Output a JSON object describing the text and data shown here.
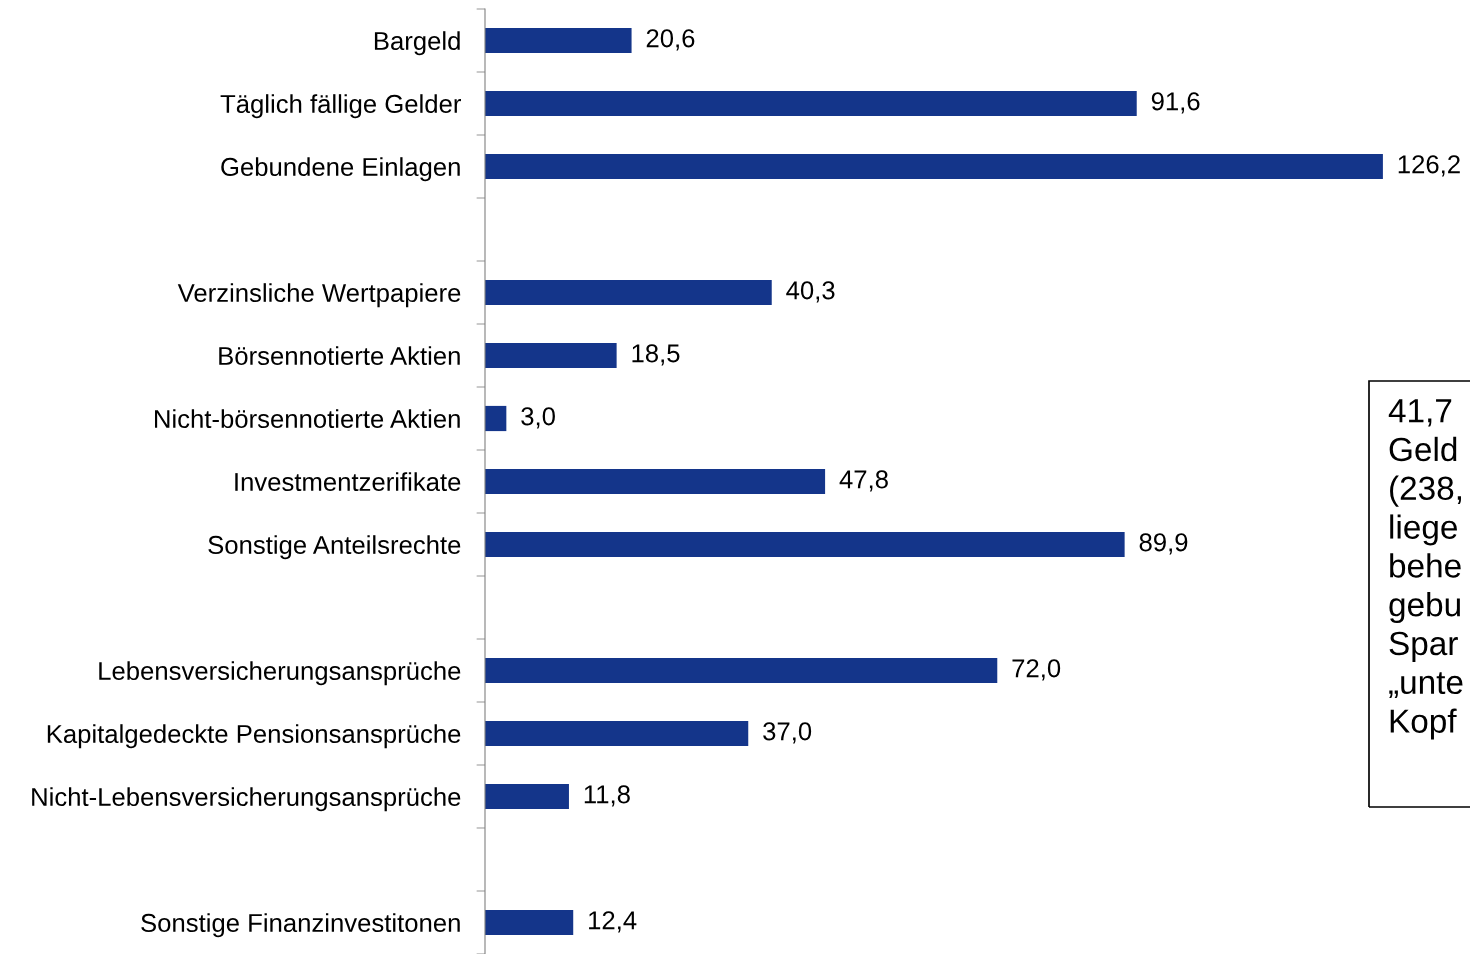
{
  "chart_data": {
    "type": "bar",
    "orientation": "horizontal",
    "data_labels": true,
    "grid": false,
    "tick_labels": "y",
    "color": "#14358a",
    "categories": [
      "Bargeld",
      "Täglich fällige Gelder",
      "Gebundene Einlagen",
      null,
      "Verzinsliche Wertpapiere",
      "Börsennotierte Aktien",
      "Nicht-börsennotierte Aktien",
      "Investmentzerifikate",
      "Sonstige Anteilsrechte",
      null,
      "Lebensversicherungsansprüche",
      "Kapitalgedeckte Pensionsansprüche",
      "Nicht-Lebensversicherungsansprüche",
      null,
      "Sonstige Finanzinvestitonen"
    ],
    "values": [
      20.6,
      91.6,
      126.2,
      null,
      40.3,
      18.5,
      3.0,
      47.8,
      89.9,
      null,
      72.0,
      37.0,
      11.8,
      null,
      12.4
    ],
    "value_labels": [
      "20,6",
      "91,6",
      "126,2",
      null,
      "40,3",
      "18,5",
      "3,0",
      "47,8",
      "89,9",
      null,
      "72,0",
      "37,0",
      "11,8",
      null,
      "12,4"
    ],
    "annotations": [
      "41,7\nGeld\n(238,\nliege\nbehe\ngebu\nSpar\n„unte\nKopf"
    ]
  }
}
